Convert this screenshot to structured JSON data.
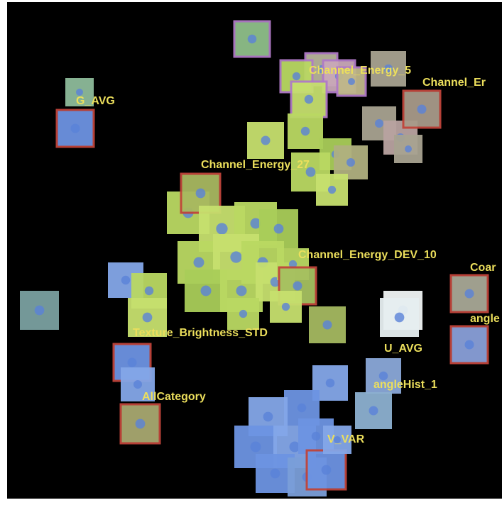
{
  "labels": [
    "Channel_Energy_5",
    "Channel_Er",
    "G_AVG",
    "Channel_Energy_27",
    "Channel_Energy_DEV_10",
    "Coar",
    "angle",
    "Texture_Brightness_STD",
    "U_AVG",
    "angleHist_1",
    "AllCategory",
    "V_VAR"
  ]
}
